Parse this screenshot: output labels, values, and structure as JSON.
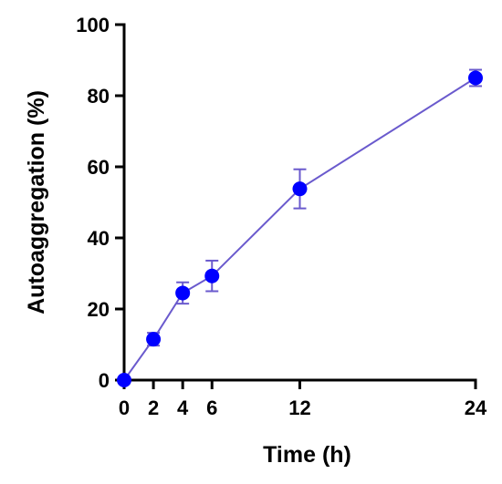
{
  "chart_data": {
    "type": "line",
    "title": "",
    "xlabel": "Time (h)",
    "ylabel": "Autoaggregation (%)",
    "xlim": [
      0,
      24
    ],
    "ylim": [
      0,
      100
    ],
    "x_ticks": [
      0,
      2,
      4,
      6,
      12,
      24
    ],
    "y_ticks": [
      0,
      20,
      40,
      60,
      80,
      100
    ],
    "grid": false,
    "series": [
      {
        "color": "#0000ff",
        "line_color": "#6a5acd",
        "x": [
          0,
          2,
          4,
          6,
          12,
          24
        ],
        "y": [
          0,
          11.5,
          24.5,
          29.3,
          53.8,
          85
        ],
        "error": [
          0,
          1.8,
          3,
          4.3,
          5.5,
          2.3
        ]
      }
    ]
  }
}
